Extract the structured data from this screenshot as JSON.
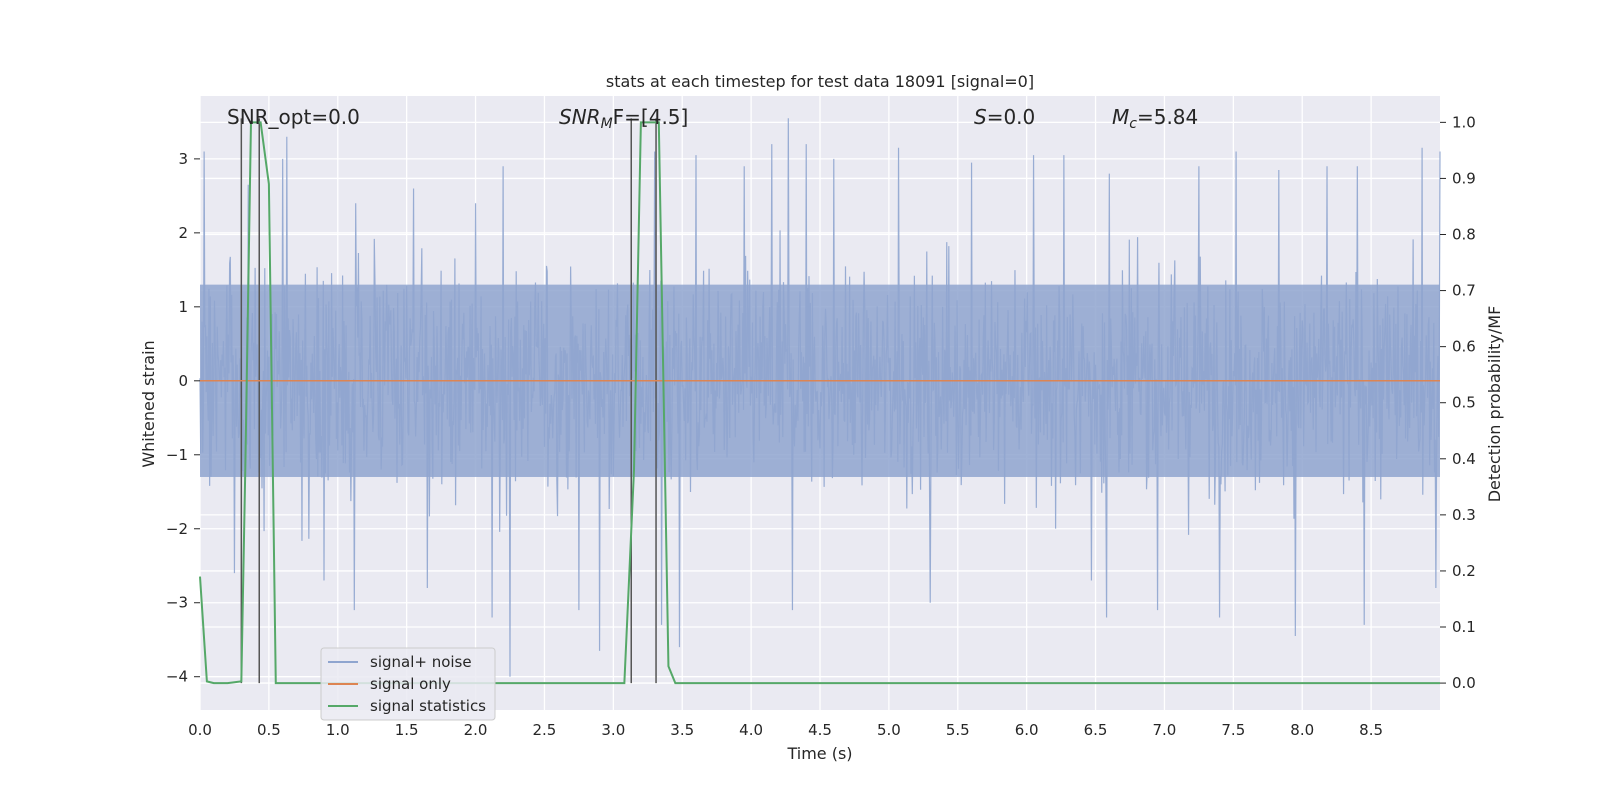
{
  "chart_data": {
    "type": "line",
    "title": "stats at each timestep for test data 18091 [signal=0]",
    "xlabel": "Time (s)",
    "ylabel": "Whitened strain",
    "y2label": "Detection probability/MF",
    "xlim": [
      0,
      9.0
    ],
    "ylim": [
      -4.45,
      3.85
    ],
    "y2lim": [
      -0.048,
      1.047
    ],
    "x_ticks": [
      0.0,
      0.5,
      1.0,
      1.5,
      2.0,
      2.5,
      3.0,
      3.5,
      4.0,
      4.5,
      5.0,
      5.5,
      6.0,
      6.5,
      7.0,
      7.5,
      8.0,
      8.5
    ],
    "x_tick_labels": [
      "0.0",
      "0.5",
      "1.0",
      "1.5",
      "2.0",
      "2.5",
      "3.0",
      "3.5",
      "4.0",
      "4.5",
      "5.0",
      "5.5",
      "6.0",
      "6.5",
      "7.0",
      "7.5",
      "8.0",
      "8.5"
    ],
    "y_ticks": [
      3,
      2,
      1,
      0,
      -1,
      -2,
      -3,
      -4
    ],
    "y_tick_labels": [
      "3",
      "2",
      "1",
      "0",
      "−1",
      "−2",
      "−3",
      "−4"
    ],
    "y2_ticks": [
      1.0,
      0.9,
      0.8,
      0.7,
      0.6,
      0.5,
      0.4,
      0.3,
      0.2,
      0.1,
      0.0
    ],
    "y2_tick_labels": [
      "1.0",
      "0.9",
      "0.8",
      "0.7",
      "0.6",
      "0.5",
      "0.4",
      "0.3",
      "0.2",
      "0.1",
      "0.0"
    ],
    "grid": true,
    "legend_position": "lower-left",
    "series": [
      {
        "name": "signal+ noise",
        "color": "#8fa5cf",
        "axis": "left",
        "description_values": {
          "core_band": [
            -1.3,
            1.3
          ],
          "x_start": 0.0,
          "x_end": 9.0,
          "peaks_high": [
            [
              0.03,
              3.1
            ],
            [
              0.35,
              2.65
            ],
            [
              0.6,
              3.0
            ],
            [
              0.63,
              3.3
            ],
            [
              1.13,
              2.4
            ],
            [
              1.55,
              2.6
            ],
            [
              2.0,
              2.4
            ],
            [
              2.2,
              2.9
            ],
            [
              3.3,
              3.1
            ],
            [
              3.6,
              3.05
            ],
            [
              3.95,
              2.9
            ],
            [
              4.15,
              3.2
            ],
            [
              4.27,
              3.55
            ],
            [
              4.4,
              3.2
            ],
            [
              4.6,
              3.0
            ],
            [
              5.07,
              3.15
            ],
            [
              5.3,
              3.1
            ],
            [
              5.6,
              2.95
            ],
            [
              6.05,
              3.05
            ],
            [
              6.27,
              3.05
            ],
            [
              6.6,
              2.8
            ],
            [
              7.25,
              2.9
            ],
            [
              7.52,
              3.1
            ],
            [
              7.83,
              2.85
            ],
            [
              8.18,
              2.9
            ],
            [
              8.4,
              2.9
            ],
            [
              8.87,
              3.15
            ],
            [
              9.0,
              3.1
            ]
          ],
          "peaks_low": [
            [
              0.25,
              -2.6
            ],
            [
              0.9,
              -2.7
            ],
            [
              1.12,
              -3.1
            ],
            [
              1.65,
              -2.8
            ],
            [
              2.12,
              -3.2
            ],
            [
              2.25,
              -4.0
            ],
            [
              2.75,
              -3.1
            ],
            [
              2.9,
              -3.65
            ],
            [
              3.35,
              -3.3
            ],
            [
              3.48,
              -3.6
            ],
            [
              4.3,
              -3.1
            ],
            [
              5.3,
              -3.0
            ],
            [
              6.47,
              -2.7
            ],
            [
              6.58,
              -3.2
            ],
            [
              6.95,
              -3.1
            ],
            [
              7.4,
              -3.2
            ],
            [
              7.95,
              -3.45
            ],
            [
              8.45,
              -3.3
            ],
            [
              8.97,
              -2.8
            ]
          ]
        }
      },
      {
        "name": "signal only",
        "color": "#dd8452",
        "axis": "left",
        "x": [
          0.0,
          9.0
        ],
        "y": [
          0.0,
          0.0
        ]
      },
      {
        "name": "signal statistics",
        "color": "#55a868",
        "axis": "right",
        "x": [
          0.0,
          0.05,
          0.1,
          0.2,
          0.3,
          0.33,
          0.37,
          0.4,
          0.44,
          0.5,
          0.55,
          1.0,
          2.0,
          3.08,
          3.15,
          3.2,
          3.27,
          3.33,
          3.4,
          3.45,
          4.0,
          5.0,
          6.0,
          7.0,
          8.0,
          9.0
        ],
        "y": [
          0.19,
          0.003,
          0.0,
          0.0,
          0.003,
          0.4,
          1.0,
          1.0,
          1.0,
          0.89,
          0.0,
          0.0,
          0.0,
          0.0,
          0.38,
          1.0,
          1.0,
          1.0,
          0.03,
          0.0,
          0.0,
          0.0,
          0.0,
          0.0,
          0.0,
          0.0
        ]
      }
    ],
    "vertical_markers": [
      0.3,
      0.43,
      3.13,
      3.31
    ],
    "vertical_marker_color": "#555555",
    "annotations": [
      {
        "id": "snr_opt",
        "text": "SNR_opt=0.0",
        "x": 0.19,
        "y": 3.55
      },
      {
        "id": "snr_mf",
        "text_main": "SNR",
        "text_sub": "M",
        "text_tail": "F=[4.5]",
        "x": 2.6,
        "y": 3.55
      },
      {
        "id": "s_val",
        "text_main": "S",
        "text_tail": "=0.0",
        "x": 5.6,
        "y": 3.55
      },
      {
        "id": "mc_val",
        "text_main": "M",
        "text_sub": "c",
        "text_tail": "=5.84",
        "x": 6.6,
        "y": 3.55
      }
    ]
  }
}
